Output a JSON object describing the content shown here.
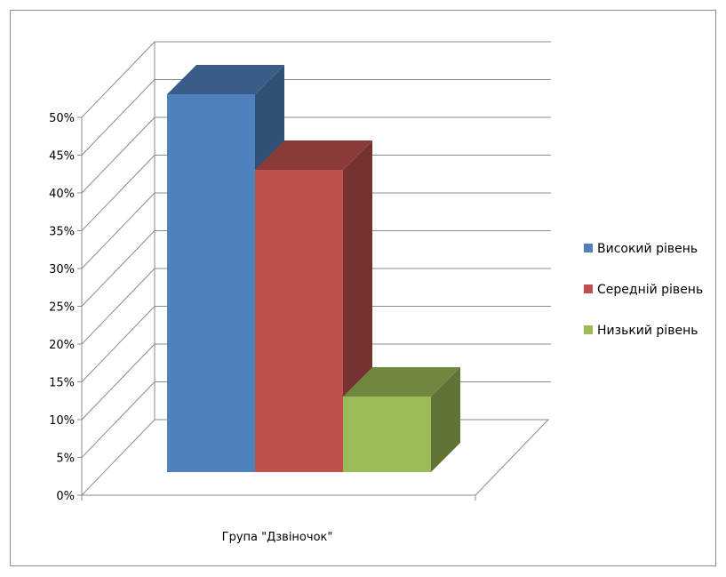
{
  "chart_data": {
    "type": "bar",
    "title": "",
    "xlabel": "",
    "ylabel": "",
    "categories": [
      "Група \"Дзвіночок\""
    ],
    "series": [
      {
        "name": "Високий рівень",
        "values": [
          50
        ],
        "color": "#4f81bd"
      },
      {
        "name": "Середній рівень",
        "values": [
          40
        ],
        "color": "#c0504d"
      },
      {
        "name": "Низький рівень",
        "values": [
          10
        ],
        "color": "#9bbb59"
      }
    ],
    "ylim": [
      0,
      50
    ],
    "y_ticks": [
      "0%",
      "5%",
      "10%",
      "15%",
      "20%",
      "25%",
      "30%",
      "35%",
      "40%",
      "45%",
      "50%"
    ],
    "y_unit": "%",
    "grid": true,
    "legend_position": "right",
    "style": "3d-clustered-column"
  }
}
